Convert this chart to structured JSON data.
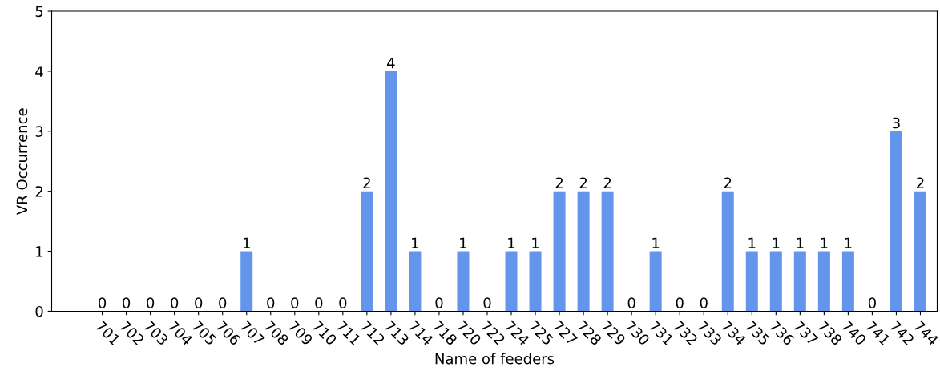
{
  "chart_data": {
    "type": "bar",
    "xlabel": "Name of feeders",
    "ylabel": "VR Occurrence",
    "categories": [
      "701",
      "702",
      "703",
      "704",
      "705",
      "706",
      "707",
      "708",
      "709",
      "710",
      "711",
      "712",
      "713",
      "714",
      "718",
      "720",
      "722",
      "724",
      "725",
      "727",
      "728",
      "729",
      "730",
      "731",
      "732",
      "733",
      "734",
      "735",
      "736",
      "737",
      "738",
      "740",
      "741",
      "742",
      "744"
    ],
    "values": [
      0,
      0,
      0,
      0,
      0,
      0,
      1,
      0,
      0,
      0,
      0,
      2,
      4,
      1,
      0,
      1,
      0,
      1,
      1,
      2,
      2,
      2,
      0,
      1,
      0,
      0,
      2,
      1,
      1,
      1,
      1,
      1,
      0,
      3,
      2
    ],
    "color": "#6495ed",
    "ylim": [
      0,
      5
    ],
    "yticks": [
      0,
      1,
      2,
      3,
      4,
      5
    ],
    "grid": false,
    "data_labels": true
  }
}
